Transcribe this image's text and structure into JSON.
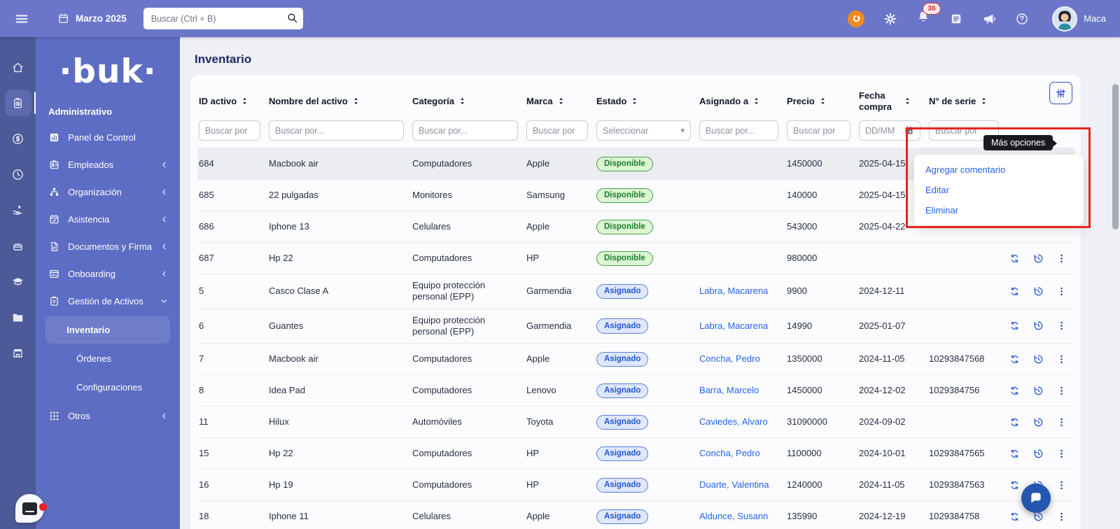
{
  "topbar": {
    "date_label": "Marzo 2025",
    "search_placeholder": "Buscar (Ctrl + B)",
    "notification_count": "36",
    "user_name": "Maca",
    "icons": [
      "hamburger-icon",
      "calendar-icon",
      "search-icon",
      "recorder-icon",
      "settings-gear-icon",
      "notifications-bell-icon",
      "news-notes-icon",
      "announcements-megaphone-icon",
      "help-icon",
      "avatar"
    ]
  },
  "sidebar": {
    "logo_text": "·buk·",
    "section_label": "Administrativo",
    "rail": [
      {
        "icon": "home-icon",
        "active": false
      },
      {
        "icon": "inventory-clipboard-icon",
        "active": true
      },
      {
        "icon": "payroll-dollar-icon",
        "active": false
      },
      {
        "icon": "time-clock-icon",
        "active": false
      },
      {
        "icon": "benefits-hand-heart-icon",
        "active": false
      },
      {
        "icon": "celebrations-cake-icon",
        "active": false
      },
      {
        "icon": "training-graduation-icon",
        "active": false
      },
      {
        "icon": "documents-folder-icon",
        "active": false
      },
      {
        "icon": "marketplace-store-icon",
        "active": false
      }
    ],
    "items": [
      {
        "label": "Panel de Control",
        "icon": "dashboard-icon",
        "collapsible": false
      },
      {
        "label": "Empleados",
        "icon": "employees-badge-icon",
        "collapsible": true
      },
      {
        "label": "Organización",
        "icon": "organization-icon",
        "collapsible": true
      },
      {
        "label": "Asistencia",
        "icon": "attendance-calendar-icon",
        "collapsible": true
      },
      {
        "label": "Documentos y Firma",
        "icon": "documents-signature-icon",
        "collapsible": true
      },
      {
        "label": "Onboarding",
        "icon": "onboarding-card-icon",
        "collapsible": true
      },
      {
        "label": "Gestión de Activos",
        "icon": "assets-clipboard-icon",
        "collapsible": true,
        "expanded": true,
        "children": [
          {
            "label": "Inventario",
            "active": true
          },
          {
            "label": "Órdenes",
            "active": false
          },
          {
            "label": "Configuraciones",
            "active": false
          }
        ]
      },
      {
        "label": "Otros",
        "icon": "others-grid-icon",
        "collapsible": true
      }
    ]
  },
  "page": {
    "title": "Inventario"
  },
  "table": {
    "columns": [
      {
        "label": "ID activo",
        "filter_placeholder": "Buscar por",
        "filter_type": "text"
      },
      {
        "label": "Nombre del activo",
        "filter_placeholder": "Buscar por...",
        "filter_type": "text"
      },
      {
        "label": "Categoría",
        "filter_placeholder": "Buscar por...",
        "filter_type": "text"
      },
      {
        "label": "Marca",
        "filter_placeholder": "Buscar por",
        "filter_type": "text"
      },
      {
        "label": "Estado",
        "filter_placeholder": "Seleccionar",
        "filter_type": "select"
      },
      {
        "label": "Asignado a",
        "filter_placeholder": "Buscar por...",
        "filter_type": "text"
      },
      {
        "label": "Precio",
        "filter_placeholder": "Buscar por",
        "filter_type": "text"
      },
      {
        "label": "Fecha compra",
        "filter_placeholder": "DD/MM",
        "filter_type": "date"
      },
      {
        "label": "N° de serie",
        "filter_placeholder": "Buscar por",
        "filter_type": "text"
      }
    ],
    "rows": [
      {
        "id": "684",
        "nombre": "Macbook air",
        "categoria": "Computadores",
        "marca": "Apple",
        "estado": "Disponible",
        "asignado": "",
        "precio": "1450000",
        "fecha": "2025-04-15",
        "serie": "",
        "actions": "kebab",
        "highlight": true
      },
      {
        "id": "685",
        "nombre": "22 pulgadas",
        "categoria": "Monitores",
        "marca": "Samsung",
        "estado": "Disponible",
        "asignado": "",
        "precio": "140000",
        "fecha": "2025-04-15",
        "serie": "",
        "actions": "none",
        "highlight": false
      },
      {
        "id": "686",
        "nombre": "Iphone 13",
        "categoria": "Celulares",
        "marca": "Apple",
        "estado": "Disponible",
        "asignado": "",
        "precio": "543000",
        "fecha": "2025-04-22",
        "serie": "",
        "actions": "none",
        "highlight": false
      },
      {
        "id": "687",
        "nombre": "Hp 22",
        "categoria": "Computadores",
        "marca": "HP",
        "estado": "Disponible",
        "asignado": "",
        "precio": "980000",
        "fecha": "",
        "serie": "",
        "actions": "full",
        "highlight": false
      },
      {
        "id": "5",
        "nombre": "Casco Clase A",
        "categoria": "Equipo protección personal (EPP)",
        "marca": "Garmendia",
        "estado": "Asignado",
        "asignado": "Labra, Macarena",
        "precio": "9900",
        "fecha": "2024-12-11",
        "serie": "",
        "actions": "full",
        "highlight": false
      },
      {
        "id": "6",
        "nombre": "Guantes",
        "categoria": "Equipo protección personal (EPP)",
        "marca": "Garmendia",
        "estado": "Asignado",
        "asignado": "Labra, Macarena",
        "precio": "14990",
        "fecha": "2025-01-07",
        "serie": "",
        "actions": "full",
        "highlight": false
      },
      {
        "id": "7",
        "nombre": "Macbook air",
        "categoria": "Computadores",
        "marca": "Apple",
        "estado": "Asignado",
        "asignado": "Concha, Pedro",
        "precio": "1350000",
        "fecha": "2024-11-05",
        "serie": "10293847568",
        "actions": "full",
        "highlight": false
      },
      {
        "id": "8",
        "nombre": "Idea Pad",
        "categoria": "Computadores",
        "marca": "Lenovo",
        "estado": "Asignado",
        "asignado": "Barra, Marcelo",
        "precio": "1450000",
        "fecha": "2024-12-02",
        "serie": "1029384756",
        "actions": "full",
        "highlight": false
      },
      {
        "id": "11",
        "nombre": "Hilux",
        "categoria": "Automóviles",
        "marca": "Toyota",
        "estado": "Asignado",
        "asignado": "Caviedes, Alvaro",
        "precio": "31090000",
        "fecha": "2024-09-02",
        "serie": "",
        "actions": "full",
        "highlight": false
      },
      {
        "id": "15",
        "nombre": "Hp 22",
        "categoria": "Computadores",
        "marca": "HP",
        "estado": "Asignado",
        "asignado": "Concha, Pedro",
        "precio": "1100000",
        "fecha": "2024-10-01",
        "serie": "10293847565",
        "actions": "full",
        "highlight": false
      },
      {
        "id": "16",
        "nombre": "Hp 19",
        "categoria": "Computadores",
        "marca": "HP",
        "estado": "Asignado",
        "asignado": "Duarte, Valentina",
        "precio": "1240000",
        "fecha": "2024-11-05",
        "serie": "10293847563",
        "actions": "full",
        "highlight": false
      },
      {
        "id": "18",
        "nombre": "Iphone 11",
        "categoria": "Celulares",
        "marca": "Apple",
        "estado": "Asignado",
        "asignado": "Aldunce, Susann",
        "precio": "135990",
        "fecha": "2024-12-19",
        "serie": "1029384758",
        "actions": "full",
        "highlight": false
      }
    ]
  },
  "context_menu": {
    "tooltip": "Más opciones",
    "items": [
      "Agregar comentario",
      "Editar",
      "Eliminar"
    ]
  },
  "colors": {
    "topbar": "#6B76C9",
    "sidebar_rail": "#4C5A99",
    "sidebar_panel": "#5D6DC3",
    "accent_red": "#E8251F",
    "link_blue": "#2563EB",
    "badge_available_bg": "#DCF5D3",
    "badge_available_text": "#1B7E2C",
    "badge_assigned_bg": "#DEE7FB",
    "badge_assigned_text": "#2457D6",
    "fab_blue": "#2456AD",
    "recorder_orange": "#F28B1F"
  }
}
